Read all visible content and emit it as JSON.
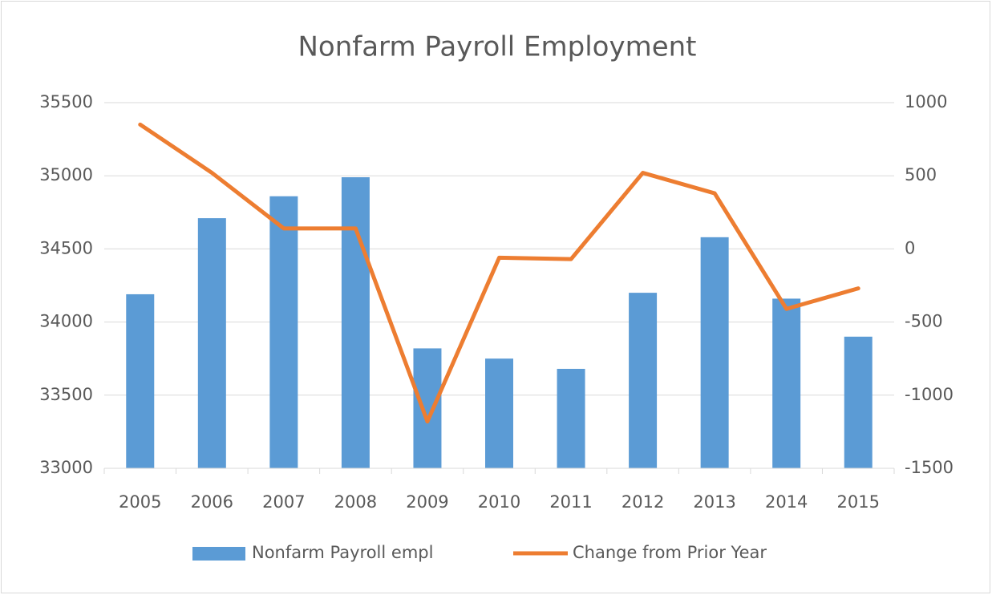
{
  "chart_data": {
    "type": "bar-line",
    "title": "Nonfarm Payroll Employment",
    "categories": [
      "2005",
      "2006",
      "2007",
      "2008",
      "2009",
      "2010",
      "2011",
      "2012",
      "2013",
      "2014",
      "2015"
    ],
    "series": [
      {
        "name": "Nonfarm Payroll empl",
        "color": "#5b9bd5",
        "type": "bar",
        "values": [
          34190,
          34710,
          34860,
          34990,
          33820,
          33750,
          33680,
          34200,
          34580,
          34160,
          33900
        ]
      },
      {
        "name": "Change from Prior Year",
        "color": "#ed7d31",
        "type": "line",
        "axis": "y2",
        "values": [
          850,
          520,
          140,
          140,
          -1180,
          -60,
          -70,
          520,
          380,
          -410,
          -270
        ]
      }
    ],
    "ylim": [
      33000,
      35500
    ],
    "yticks": [
      33000,
      33500,
      34000,
      34500,
      35000,
      35500
    ],
    "y2lim": [
      -1500,
      1000
    ],
    "y2ticks": [
      -1500,
      -1000,
      -500,
      0,
      500,
      1000
    ],
    "grid": true,
    "legend": "bottom"
  }
}
